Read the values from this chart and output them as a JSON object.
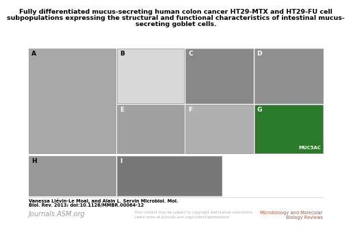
{
  "title_line1": "Fully differentiated mucus-secreting human colon cancer HT29-MTX and HT29-FU cell",
  "title_line2": "subpopulations expressing the structural and functional characteristics of intestinal mucus-",
  "title_line3": "secreting goblet cells.",
  "title_fontsize": 6.8,
  "background_color": "#ffffff",
  "muc5ac_text": "MUC5AC",
  "footer_author_line1": "Vanessa Liévin-Le Moal, and Alain L. Servin Microbiol. Mol.",
  "footer_author_line2": "Biol. Rev. 2013; doi:10.1128/MMBR.00064-12",
  "footer_journal": "Journals.ASM.org",
  "footer_copyright_line1": "This content may be subject to copyright and license restrictions.",
  "footer_copyright_line2": "Learn more at journals.asm.org/content/permissions",
  "footer_journal_full_line1": "Microbiology and Molecular",
  "footer_journal_full_line2": "Biology Reviews",
  "footer_color_author": "#000000",
  "footer_color_journal": "#999999",
  "footer_color_copyright": "#aaaaaa",
  "footer_color_journal_full": "#b05030",
  "border_color": "#999999",
  "panel_colors": {
    "A": "#a8a8a8",
    "B": "#d8d8d8",
    "C": "#888888",
    "D": "#909090",
    "E": "#a0a0a0",
    "F": "#b0b0b0",
    "G": "#2a7a2a",
    "H": "#989898",
    "I": "#787878"
  },
  "panel_label_colors": {
    "A": "#000000",
    "B": "#000000",
    "C": "#ffffff",
    "D": "#ffffff",
    "E": "#ffffff",
    "F": "#ffffff",
    "G": "#ffffff",
    "H": "#000000",
    "I": "#ffffff"
  }
}
